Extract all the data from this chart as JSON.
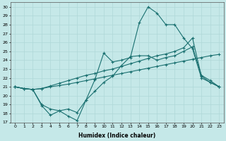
{
  "xlabel": "Humidex (Indice chaleur)",
  "xlim": [
    -0.5,
    23.5
  ],
  "ylim": [
    17,
    30.5
  ],
  "yticks": [
    17,
    18,
    19,
    20,
    21,
    22,
    23,
    24,
    25,
    26,
    27,
    28,
    29,
    30
  ],
  "xticks": [
    0,
    1,
    2,
    3,
    4,
    5,
    6,
    7,
    8,
    9,
    10,
    11,
    12,
    13,
    14,
    15,
    16,
    17,
    18,
    19,
    20,
    21,
    22,
    23
  ],
  "bg_color": "#c5e8e8",
  "line_color": "#1a7070",
  "grid_color": "#afd8d8",
  "line1_x": [
    0,
    1,
    2,
    3,
    4,
    5,
    6,
    7,
    8,
    9,
    10,
    11,
    12,
    13,
    14,
    15,
    16,
    17,
    18,
    19,
    20,
    21,
    22,
    23
  ],
  "line1_y": [
    21.0,
    20.8,
    20.7,
    20.8,
    21.0,
    21.15,
    21.3,
    21.5,
    21.7,
    21.9,
    22.1,
    22.3,
    22.5,
    22.7,
    22.9,
    23.1,
    23.3,
    23.5,
    23.7,
    23.9,
    24.1,
    24.3,
    24.5,
    24.65
  ],
  "line2_x": [
    0,
    1,
    2,
    3,
    4,
    5,
    6,
    7,
    8,
    9,
    10,
    11,
    12,
    13,
    14,
    15,
    16,
    17,
    18,
    19,
    20,
    21,
    22,
    23
  ],
  "line2_y": [
    21.0,
    20.8,
    20.7,
    20.8,
    21.1,
    21.4,
    21.7,
    22.0,
    22.3,
    22.5,
    22.8,
    23.0,
    23.3,
    23.6,
    23.9,
    24.2,
    24.5,
    24.7,
    25.0,
    25.4,
    26.5,
    22.2,
    21.5,
    21.0
  ],
  "line3_x": [
    0,
    1,
    2,
    3,
    4,
    5,
    6,
    7,
    8,
    9,
    10,
    11,
    12,
    13,
    14,
    15,
    16,
    17,
    18,
    19,
    20,
    21,
    22,
    23
  ],
  "line3_y": [
    21.0,
    20.8,
    20.7,
    18.9,
    17.8,
    18.3,
    17.7,
    17.2,
    19.5,
    21.8,
    24.8,
    23.8,
    24.0,
    24.3,
    28.2,
    30.0,
    29.3,
    28.0,
    28.0,
    26.5,
    25.3,
    22.0,
    21.5,
    21.0
  ],
  "line4_x": [
    0,
    1,
    2,
    3,
    4,
    5,
    6,
    7,
    8,
    9,
    10,
    11,
    12,
    13,
    14,
    15,
    16,
    17,
    18,
    19,
    20,
    21,
    22,
    23
  ],
  "line4_y": [
    21.0,
    20.8,
    20.7,
    19.0,
    18.5,
    18.3,
    18.5,
    18.1,
    19.5,
    20.5,
    21.5,
    22.2,
    23.4,
    24.4,
    24.5,
    24.5,
    24.0,
    24.3,
    24.5,
    25.0,
    25.5,
    22.3,
    21.7,
    21.0
  ]
}
